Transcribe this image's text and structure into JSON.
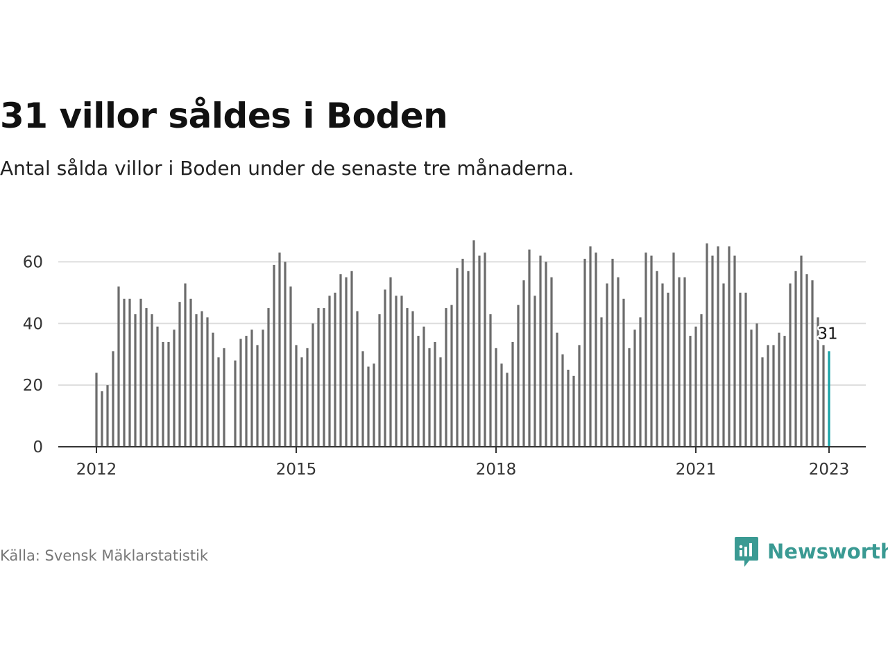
{
  "header": {
    "title": "31 villor såldes i Boden",
    "subtitle": "Antal sålda villor i Boden under de senaste tre månaderna."
  },
  "footer": {
    "source": "Källa: Svensk Mäklarstatistik",
    "brand": "Newsworthy"
  },
  "colors": {
    "bar": "#6b6b6b",
    "highlight": "#17a2a6",
    "grid": "#dddddd",
    "axis": "#333333",
    "brand": "#3a9a93"
  },
  "chart_data": {
    "type": "bar",
    "title": "31 villor såldes i Boden",
    "xlabel": "",
    "ylabel": "",
    "ylim": [
      0,
      70
    ],
    "yticks": [
      0,
      20,
      40,
      60
    ],
    "xticks": [
      {
        "label": "2012",
        "index": 0
      },
      {
        "label": "2015",
        "index": 36
      },
      {
        "label": "2018",
        "index": 72
      },
      {
        "label": "2021",
        "index": 108
      },
      {
        "label": "2023",
        "index": 132
      }
    ],
    "start": "2012-01",
    "end": "2023-01",
    "values": [
      24,
      18,
      20,
      31,
      52,
      48,
      48,
      43,
      48,
      45,
      43,
      39,
      34,
      34,
      38,
      47,
      53,
      48,
      43,
      44,
      42,
      37,
      29,
      32,
      null,
      28,
      35,
      36,
      38,
      33,
      38,
      45,
      59,
      63,
      60,
      52,
      33,
      29,
      32,
      40,
      45,
      45,
      49,
      50,
      56,
      55,
      57,
      44,
      31,
      26,
      27,
      43,
      51,
      55,
      49,
      49,
      45,
      44,
      36,
      39,
      32,
      34,
      29,
      45,
      46,
      58,
      61,
      57,
      67,
      62,
      63,
      43,
      32,
      27,
      24,
      34,
      46,
      54,
      64,
      49,
      62,
      60,
      55,
      37,
      30,
      25,
      23,
      33,
      61,
      65,
      63,
      42,
      53,
      61,
      55,
      48,
      32,
      38,
      42,
      63,
      62,
      57,
      53,
      50,
      63,
      55,
      55,
      36,
      39,
      43,
      66,
      62,
      65,
      53,
      65,
      62,
      50,
      50,
      38,
      40,
      29,
      33,
      33,
      37,
      36,
      53,
      57,
      62,
      56,
      54,
      42,
      33,
      31
    ],
    "highlight": {
      "index": 132,
      "value": 31,
      "label": "31"
    }
  }
}
